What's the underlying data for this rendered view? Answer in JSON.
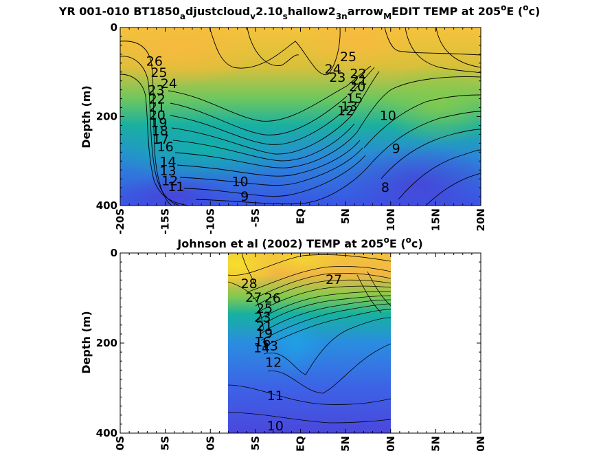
{
  "chart_data": [
    {
      "type": "heatmap",
      "title_parts": [
        "YR 001-010 BT1850",
        "a",
        "djustcloud",
        "v",
        "2.10",
        "s",
        "hallow2",
        "3n",
        "arrow",
        "M",
        "EDIT TEMP at 205",
        "o",
        "E (",
        "o",
        "c)"
      ],
      "xlabel": "",
      "ylabel": "Depth (m)",
      "xlim": [
        -20,
        20
      ],
      "ylim": [
        400,
        0
      ],
      "x_ticks": [
        "-20S",
        "-15S",
        "-10S",
        "-5S",
        "EQ",
        "5N",
        "10N",
        "15N",
        "20N"
      ],
      "y_ticks": [
        "0",
        "200",
        "400"
      ],
      "colormap": "parula",
      "contour_labels": [
        {
          "text": "26",
          "lat": -16.2,
          "depth": 75
        },
        {
          "text": "25",
          "lat": -15.7,
          "depth": 100
        },
        {
          "text": "24",
          "lat": -14.6,
          "depth": 125
        },
        {
          "text": "23",
          "lat": -16.0,
          "depth": 140
        },
        {
          "text": "22",
          "lat": -15.9,
          "depth": 160
        },
        {
          "text": "21",
          "lat": -15.9,
          "depth": 178
        },
        {
          "text": "20",
          "lat": -15.9,
          "depth": 196
        },
        {
          "text": "19",
          "lat": -15.7,
          "depth": 213
        },
        {
          "text": "18",
          "lat": -15.6,
          "depth": 231
        },
        {
          "text": "17",
          "lat": -15.5,
          "depth": 250
        },
        {
          "text": "16",
          "lat": -15.0,
          "depth": 267
        },
        {
          "text": "14",
          "lat": -14.7,
          "depth": 300
        },
        {
          "text": "13",
          "lat": -14.7,
          "depth": 321
        },
        {
          "text": "12",
          "lat": -14.5,
          "depth": 344
        },
        {
          "text": "11",
          "lat": -13.8,
          "depth": 357
        },
        {
          "text": "10",
          "lat": -6.7,
          "depth": 345
        },
        {
          "text": "9",
          "lat": -6.2,
          "depth": 378
        },
        {
          "text": "25",
          "lat": 5.3,
          "depth": 65
        },
        {
          "text": "24",
          "lat": 3.6,
          "depth": 93
        },
        {
          "text": "23",
          "lat": 4.1,
          "depth": 111
        },
        {
          "text": "22",
          "lat": 6.4,
          "depth": 103
        },
        {
          "text": "21",
          "lat": 6.5,
          "depth": 117
        },
        {
          "text": "20",
          "lat": 6.3,
          "depth": 132
        },
        {
          "text": "15",
          "lat": 6.0,
          "depth": 158
        },
        {
          "text": "13",
          "lat": 5.4,
          "depth": 176
        },
        {
          "text": "12",
          "lat": 5.0,
          "depth": 186
        },
        {
          "text": "10",
          "lat": 9.7,
          "depth": 197
        },
        {
          "text": "9",
          "lat": 10.6,
          "depth": 271
        },
        {
          "text": "8",
          "lat": 9.4,
          "depth": 358
        }
      ]
    },
    {
      "type": "heatmap",
      "title_parts": [
        "Johnson et al (2002) TEMP at 205",
        "o",
        "E (",
        "o",
        "c)"
      ],
      "xlabel": "",
      "ylabel": "Depth (m)",
      "xlim": [
        -20,
        20
      ],
      "ylim": [
        400,
        0
      ],
      "data_lat_range": [
        -8,
        10
      ],
      "x_ticks": [
        "-20S",
        "-15S",
        "-10S",
        "-5S",
        "EQ",
        "5N",
        "10N",
        "15N",
        "20N"
      ],
      "y_ticks": [
        "0",
        "200",
        "400"
      ],
      "colormap": "parula",
      "contour_labels": [
        {
          "text": "28",
          "lat": -5.7,
          "depth": 67
        },
        {
          "text": "27",
          "lat": 3.7,
          "depth": 58
        },
        {
          "text": "27",
          "lat": -5.2,
          "depth": 98
        },
        {
          "text": "26",
          "lat": -3.1,
          "depth": 99
        },
        {
          "text": "25",
          "lat": -4.0,
          "depth": 122
        },
        {
          "text": "23",
          "lat": -4.2,
          "depth": 142
        },
        {
          "text": "21",
          "lat": -4.0,
          "depth": 162
        },
        {
          "text": "19",
          "lat": -4.0,
          "depth": 178
        },
        {
          "text": "16",
          "lat": -4.2,
          "depth": 196
        },
        {
          "text": "14",
          "lat": -4.3,
          "depth": 210
        },
        {
          "text": "13",
          "lat": -3.4,
          "depth": 205
        },
        {
          "text": "12",
          "lat": -3.0,
          "depth": 242
        },
        {
          "text": "11",
          "lat": -2.8,
          "depth": 316
        },
        {
          "text": "10",
          "lat": -2.8,
          "depth": 383
        }
      ]
    }
  ]
}
